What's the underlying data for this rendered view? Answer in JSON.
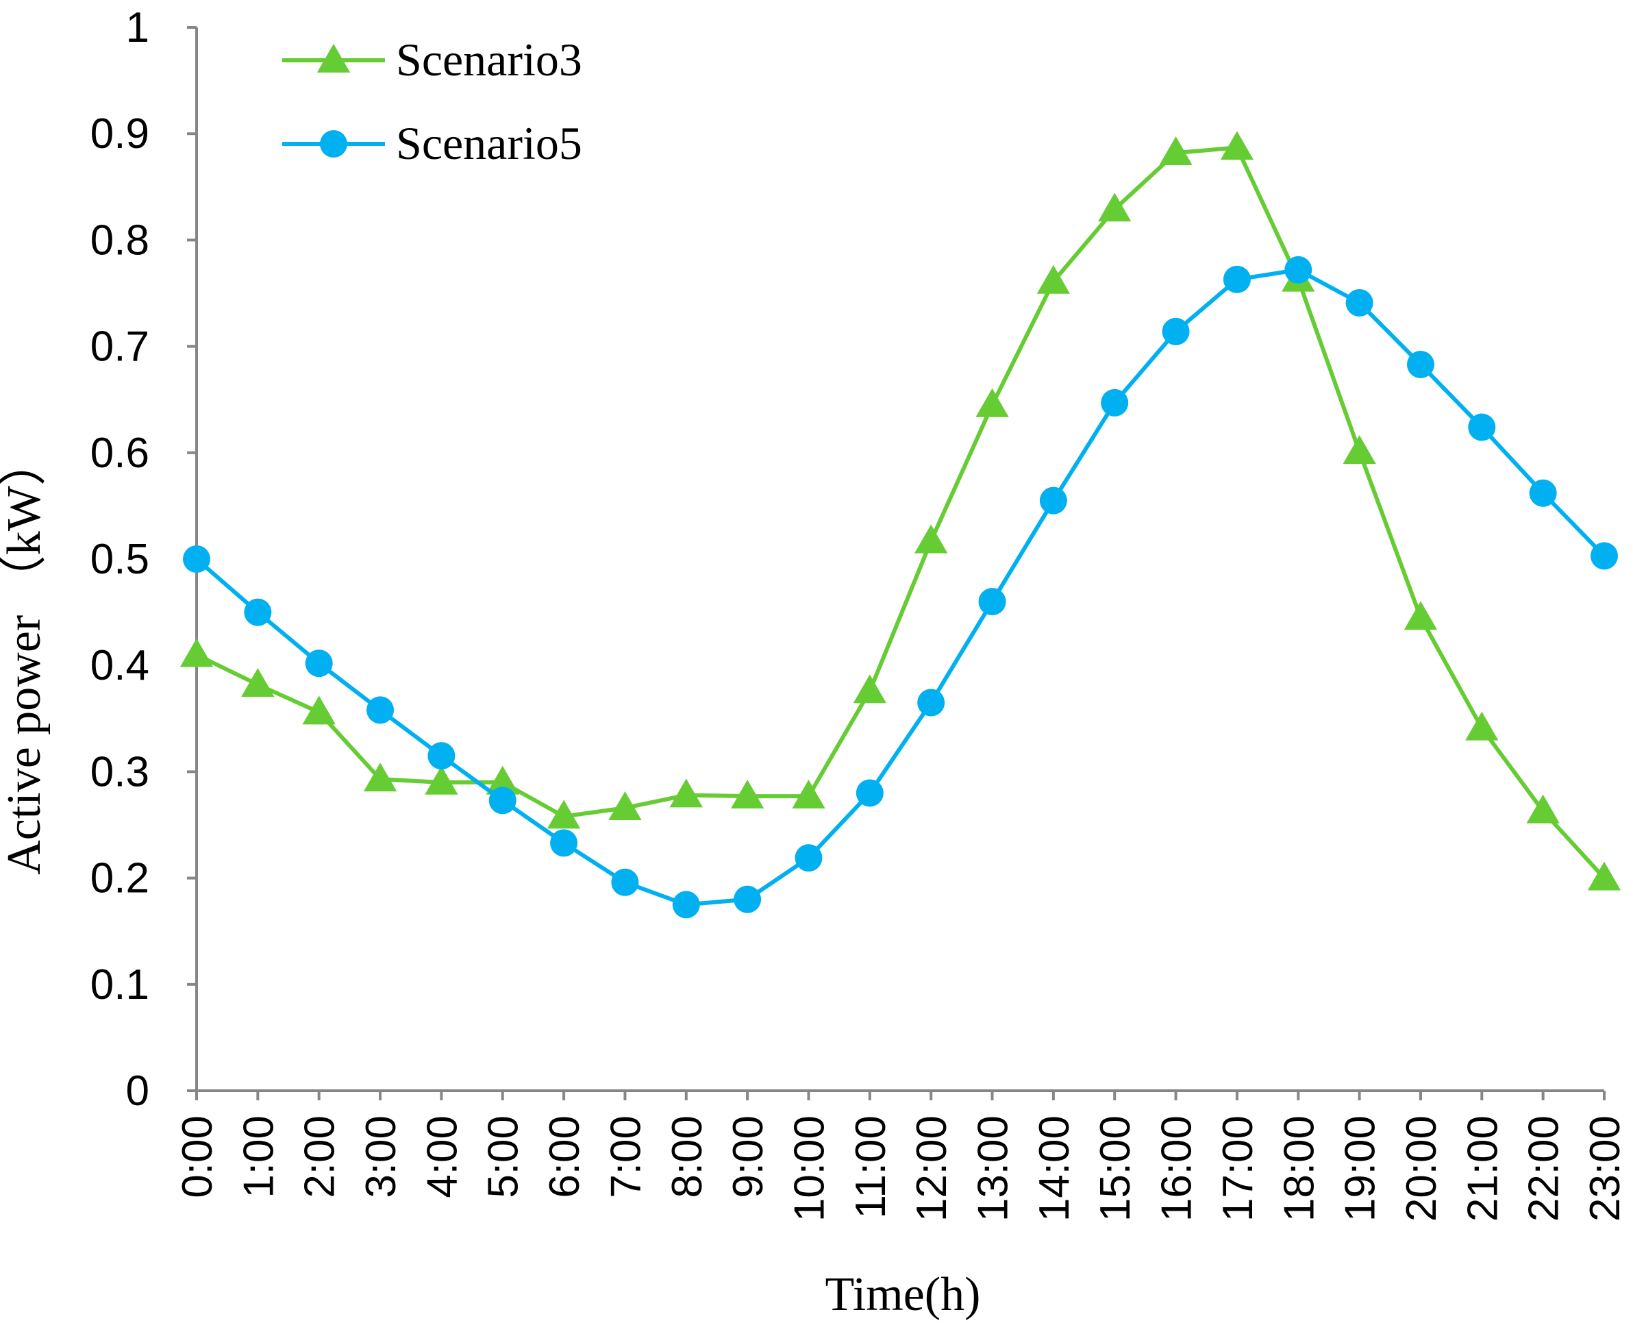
{
  "chart_data": {
    "type": "line",
    "title": "",
    "xlabel": "Time(h)",
    "ylabel": "Active power （kW）",
    "ylim": [
      0,
      1
    ],
    "yticks": [
      "0",
      "0.1",
      "0.2",
      "0.3",
      "0.4",
      "0.5",
      "0.6",
      "0.7",
      "0.8",
      "0.9",
      "1"
    ],
    "categories": [
      "0:00",
      "1:00",
      "2:00",
      "3:00",
      "4:00",
      "5:00",
      "6:00",
      "7:00",
      "8:00",
      "9:00",
      "10:00",
      "11:00",
      "12:00",
      "13:00",
      "14:00",
      "15:00",
      "16:00",
      "17:00",
      "18:00",
      "19:00",
      "20:00",
      "21:00",
      "22:00",
      "23:00"
    ],
    "legend_position": "top-left",
    "grid": false,
    "series": [
      {
        "name": "Scenario3",
        "color": "#66cc33",
        "marker": "triangle",
        "values": [
          0.41,
          0.382,
          0.356,
          0.293,
          0.29,
          0.29,
          0.258,
          0.266,
          0.278,
          0.277,
          0.277,
          0.376,
          0.517,
          0.645,
          0.761,
          0.829,
          0.882,
          0.887,
          0.763,
          0.601,
          0.445,
          0.341,
          0.263,
          0.2
        ]
      },
      {
        "name": "Scenario5",
        "color": "#00b0f0",
        "marker": "circle",
        "values": [
          0.5,
          0.45,
          0.402,
          0.358,
          0.315,
          0.273,
          0.233,
          0.196,
          0.175,
          0.18,
          0.219,
          0.28,
          0.365,
          0.46,
          0.555,
          0.647,
          0.714,
          0.763,
          0.772,
          0.741,
          0.683,
          0.624,
          0.562,
          0.503
        ]
      }
    ]
  }
}
